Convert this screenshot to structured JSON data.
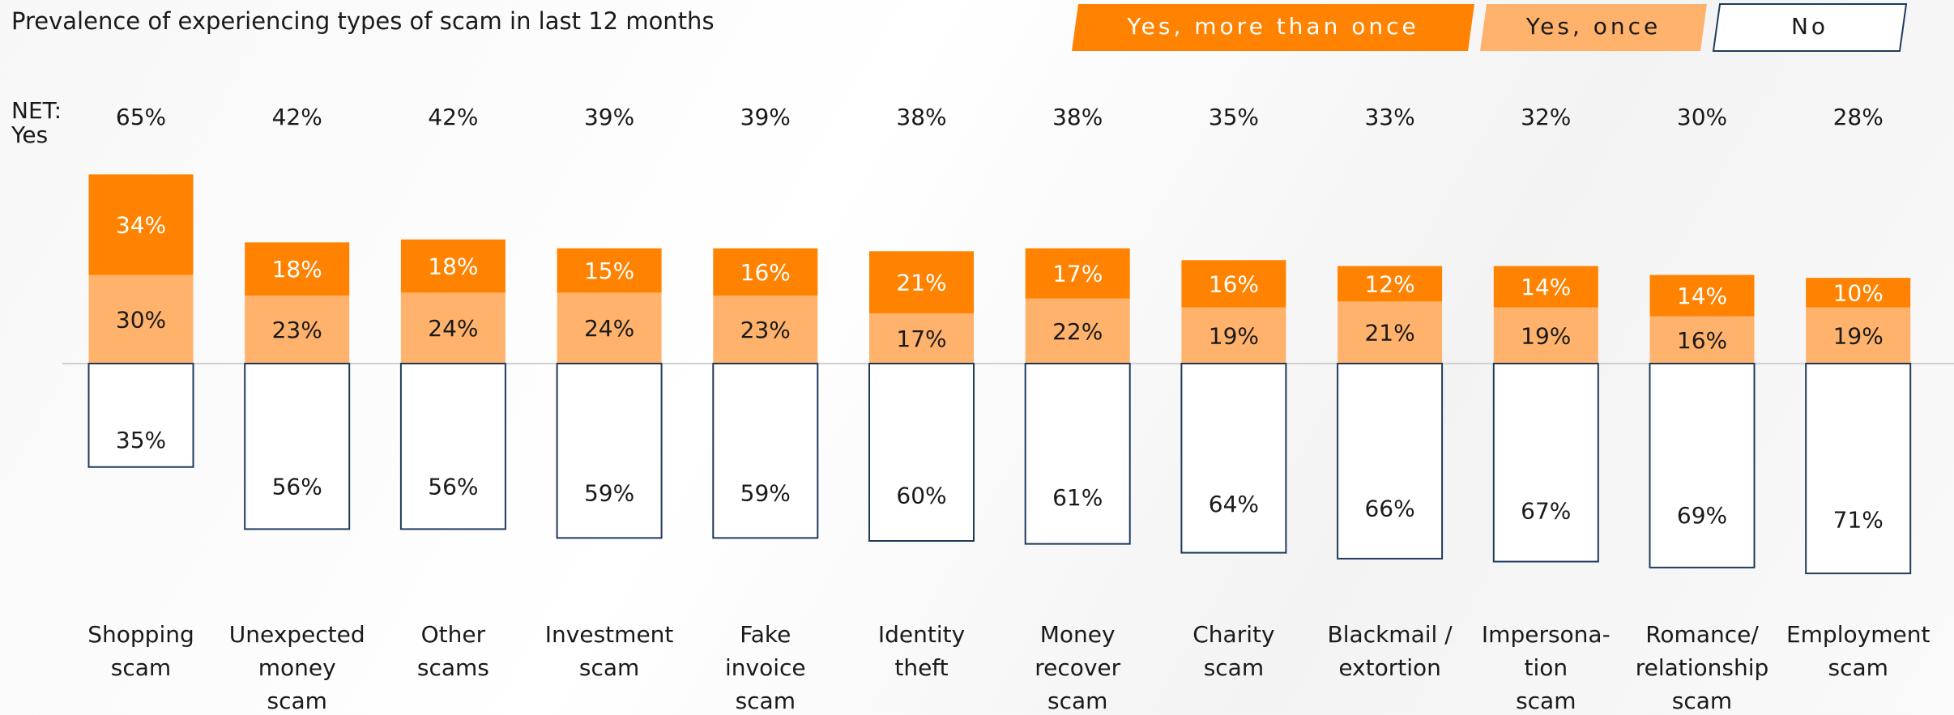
{
  "chart_data": {
    "type": "diverging-stacked-bar",
    "title": "Prevalence of experiencing types of scam in last 12 months",
    "net_label": [
      "NET:",
      "Yes"
    ],
    "categories": [
      [
        "Shopping",
        "scam"
      ],
      [
        "Unexpected",
        "money",
        "scam"
      ],
      [
        "Other",
        "scams"
      ],
      [
        "Investment",
        "scam"
      ],
      [
        "Fake",
        "invoice",
        "scam"
      ],
      [
        "Identity",
        "theft"
      ],
      [
        "Money",
        "recover",
        "scam"
      ],
      [
        "Charity",
        "scam"
      ],
      [
        "Blackmail /",
        "extortion"
      ],
      [
        "Impersona-",
        "tion",
        "scam"
      ],
      [
        "Romance/",
        "relationship",
        "scam"
      ],
      [
        "Employment",
        "scam"
      ]
    ],
    "net": {
      "values": [
        65,
        42,
        42,
        39,
        39,
        38,
        38,
        35,
        33,
        32,
        30,
        28
      ],
      "value_labels": [
        "65%",
        "42%",
        "42%",
        "39%",
        "39%",
        "38%",
        "38%",
        "35%",
        "33%",
        "32%",
        "30%",
        "28%"
      ]
    },
    "series": [
      {
        "name": "Yes, more than once",
        "color": "#ff8200",
        "values": [
          34,
          18,
          18,
          15,
          16,
          21,
          17,
          16,
          12,
          14,
          14,
          10
        ],
        "value_labels": [
          "34%",
          "18%",
          "18%",
          "15%",
          "16%",
          "21%",
          "17%",
          "16%",
          "12%",
          "14%",
          "14%",
          "10%"
        ]
      },
      {
        "name": "Yes, once",
        "color": "#ffb26b",
        "values": [
          30,
          23,
          24,
          24,
          23,
          17,
          22,
          19,
          21,
          19,
          16,
          19
        ],
        "value_labels": [
          "30%",
          "23%",
          "24%",
          "24%",
          "23%",
          "17%",
          "22%",
          "19%",
          "21%",
          "19%",
          "16%",
          "19%"
        ]
      },
      {
        "name": "No",
        "color": "#ffffff",
        "values": [
          35,
          56,
          56,
          59,
          59,
          60,
          61,
          64,
          66,
          67,
          69,
          71
        ],
        "value_labels": [
          "35%",
          "56%",
          "56%",
          "59%",
          "59%",
          "60%",
          "61%",
          "64%",
          "66%",
          "67%",
          "69%",
          "71%"
        ]
      }
    ]
  }
}
